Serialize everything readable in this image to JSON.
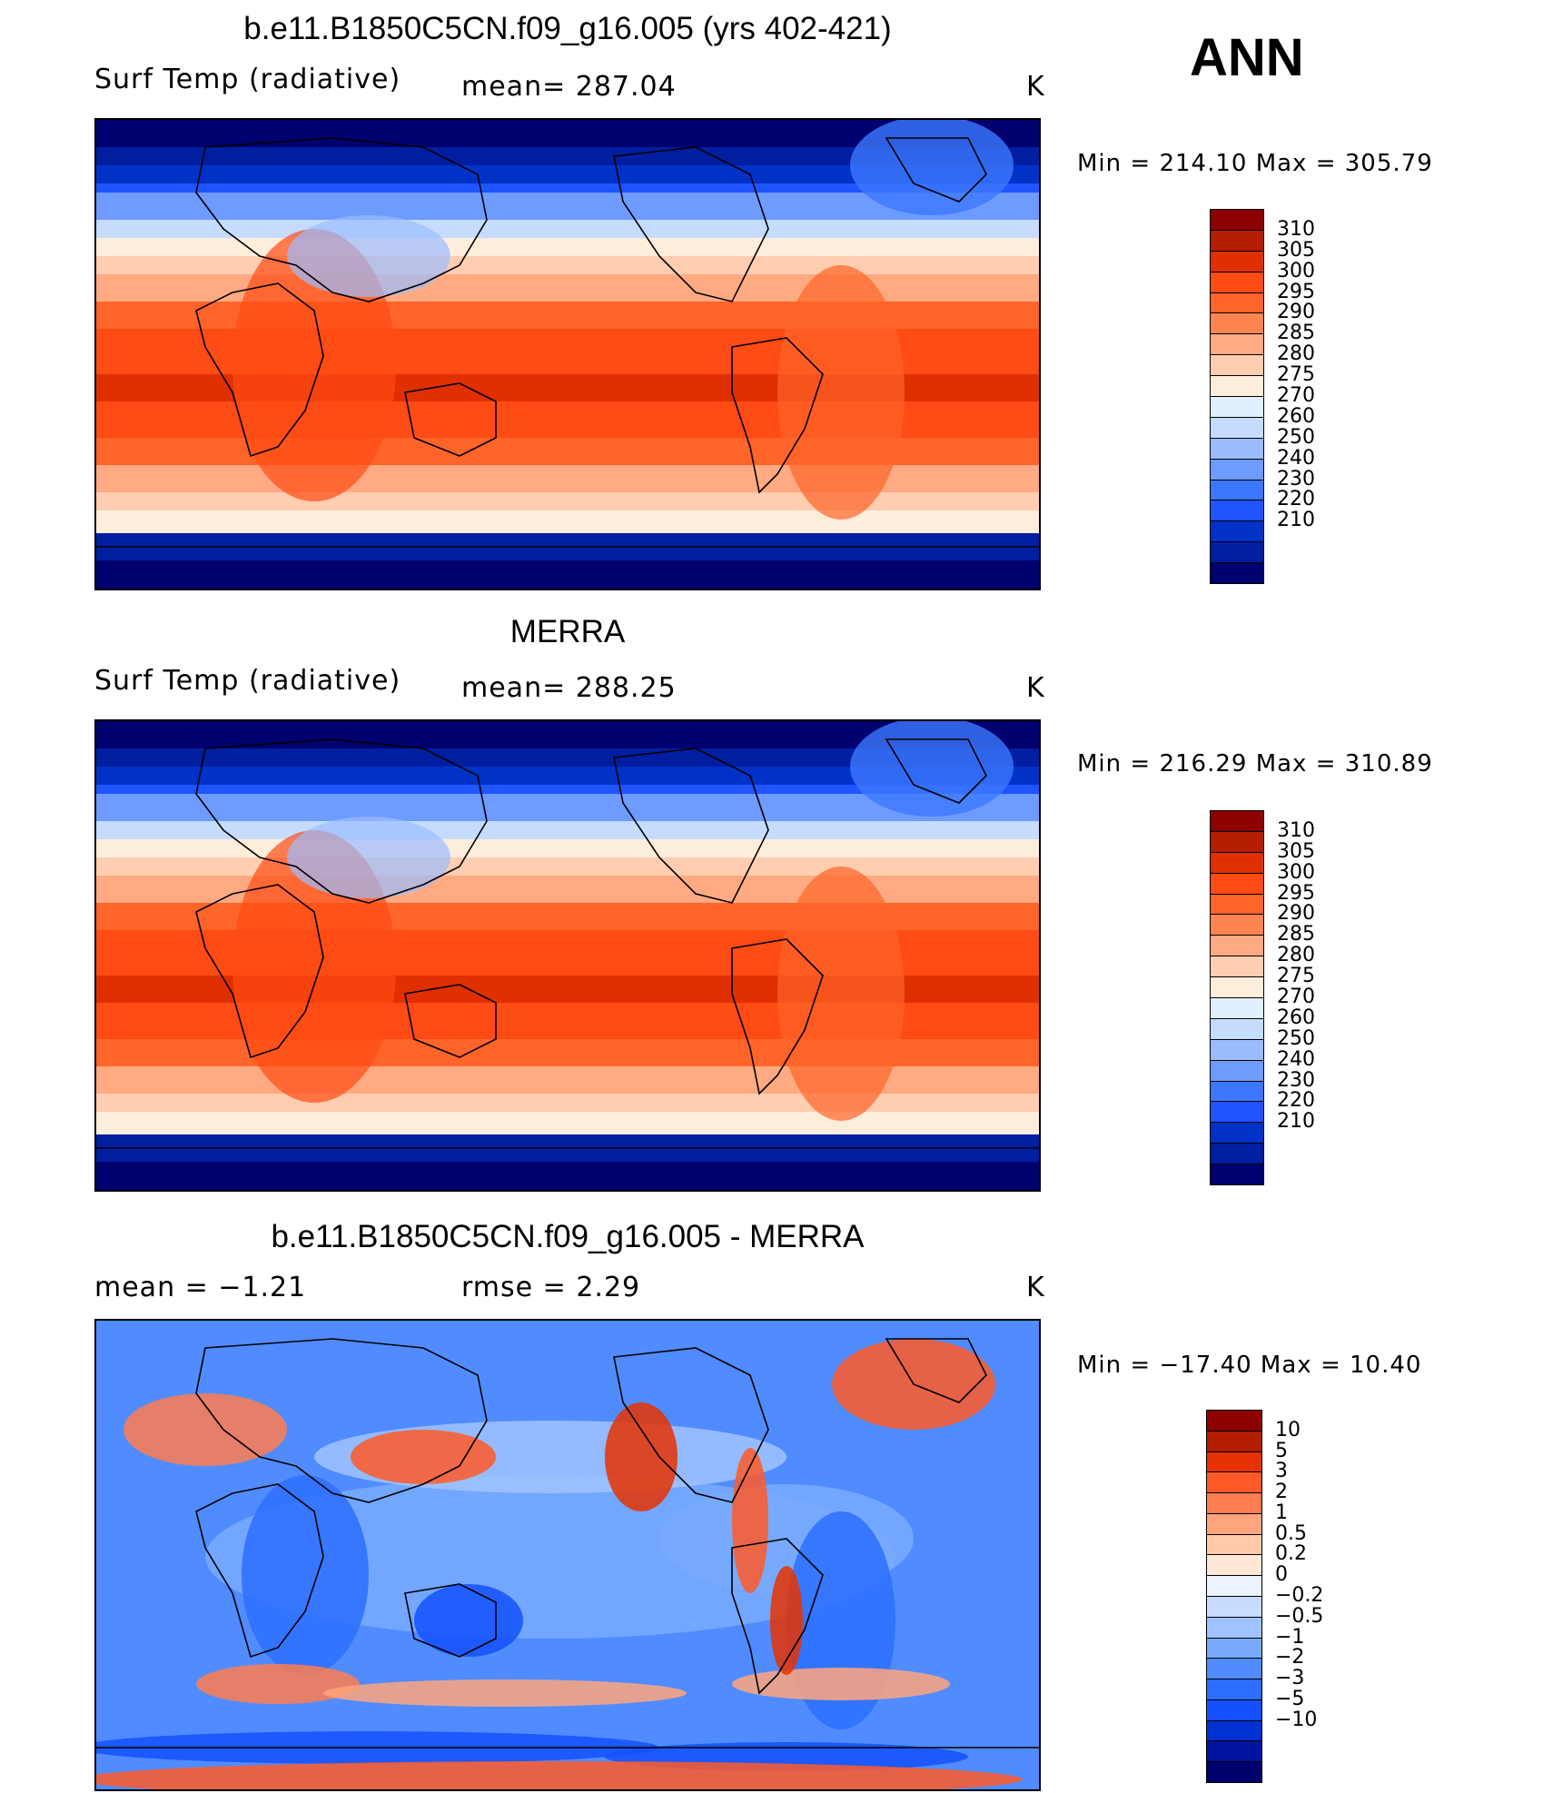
{
  "season_label": "ANN",
  "colors": {
    "abs_scale": [
      "#00006e",
      "#001ea0",
      "#0032c8",
      "#1e55ff",
      "#3c78ff",
      "#6e9bff",
      "#9bbcff",
      "#c6dcff",
      "#e2efff",
      "#ffeddc",
      "#ffcdb0",
      "#ffaa82",
      "#ff8550",
      "#ff6428",
      "#ff4b14",
      "#e03000",
      "#b41e00",
      "#8c0000"
    ],
    "diff_scale": [
      "#00006e",
      "#0014a0",
      "#0032d2",
      "#1450ff",
      "#2d6eff",
      "#508cff",
      "#78aaff",
      "#a0c3ff",
      "#c8dcff",
      "#ebf3ff",
      "#ffe8d8",
      "#ffcaaa",
      "#ffa57d",
      "#ff7d50",
      "#ff5a28",
      "#e63200",
      "#b41e00",
      "#8c0000"
    ]
  },
  "panels": [
    {
      "title": "b.e11.B1850C5CN.f09_g16.005 (yrs 402-421)",
      "variable": "Surf Temp (radiative)",
      "stat": "mean=  287.04",
      "units": "K",
      "minmax": "Min  =  214.10  Max  =  305.79",
      "colorbar_labels": [
        "310",
        "305",
        "300",
        "295",
        "290",
        "285",
        "280",
        "275",
        "270",
        "260",
        "250",
        "240",
        "230",
        "220",
        "210"
      ]
    },
    {
      "title": "MERRA",
      "variable": "Surf Temp (radiative)",
      "stat": "mean=  288.25",
      "units": "K",
      "minmax": "Min  =  216.29  Max  =  310.89",
      "colorbar_labels": [
        "310",
        "305",
        "300",
        "295",
        "290",
        "285",
        "280",
        "275",
        "270",
        "260",
        "250",
        "240",
        "230",
        "220",
        "210"
      ]
    },
    {
      "title": "b.e11.B1850C5CN.f09_g16.005 - MERRA",
      "variable": "mean  =    −1.21",
      "stat": "rmse  =     2.29",
      "units": "K",
      "minmax": "Min  =  −17.40  Max  =     10.40",
      "colorbar_labels": [
        "10",
        "5",
        "3",
        "2",
        "1",
        "0.5",
        "0.2",
        "0",
        "−0.2",
        "−0.5",
        "−1",
        "−2",
        "−3",
        "−5",
        "−10"
      ]
    }
  ],
  "chart_data": [
    {
      "type": "heatmap",
      "title": "b.e11.B1850C5CN.f09_g16.005 (yrs 402-421)",
      "variable": "Surf Temp (radiative)",
      "units": "K",
      "mean": 287.04,
      "min": 214.1,
      "max": 305.79,
      "contour_levels": [
        210,
        220,
        230,
        240,
        250,
        260,
        270,
        275,
        280,
        285,
        290,
        295,
        300,
        305,
        310
      ]
    },
    {
      "type": "heatmap",
      "title": "MERRA",
      "variable": "Surf Temp (radiative)",
      "units": "K",
      "mean": 288.25,
      "min": 216.29,
      "max": 310.89,
      "contour_levels": [
        210,
        220,
        230,
        240,
        250,
        260,
        270,
        275,
        280,
        285,
        290,
        295,
        300,
        305,
        310
      ]
    },
    {
      "type": "heatmap",
      "title": "b.e11.B1850C5CN.f09_g16.005 - MERRA",
      "units": "K",
      "mean": -1.21,
      "rmse": 2.29,
      "min": -17.4,
      "max": 10.4,
      "contour_levels": [
        -10,
        -5,
        -3,
        -2,
        -1,
        -0.5,
        -0.2,
        0,
        0.2,
        0.5,
        1,
        2,
        3,
        5,
        10
      ]
    }
  ]
}
